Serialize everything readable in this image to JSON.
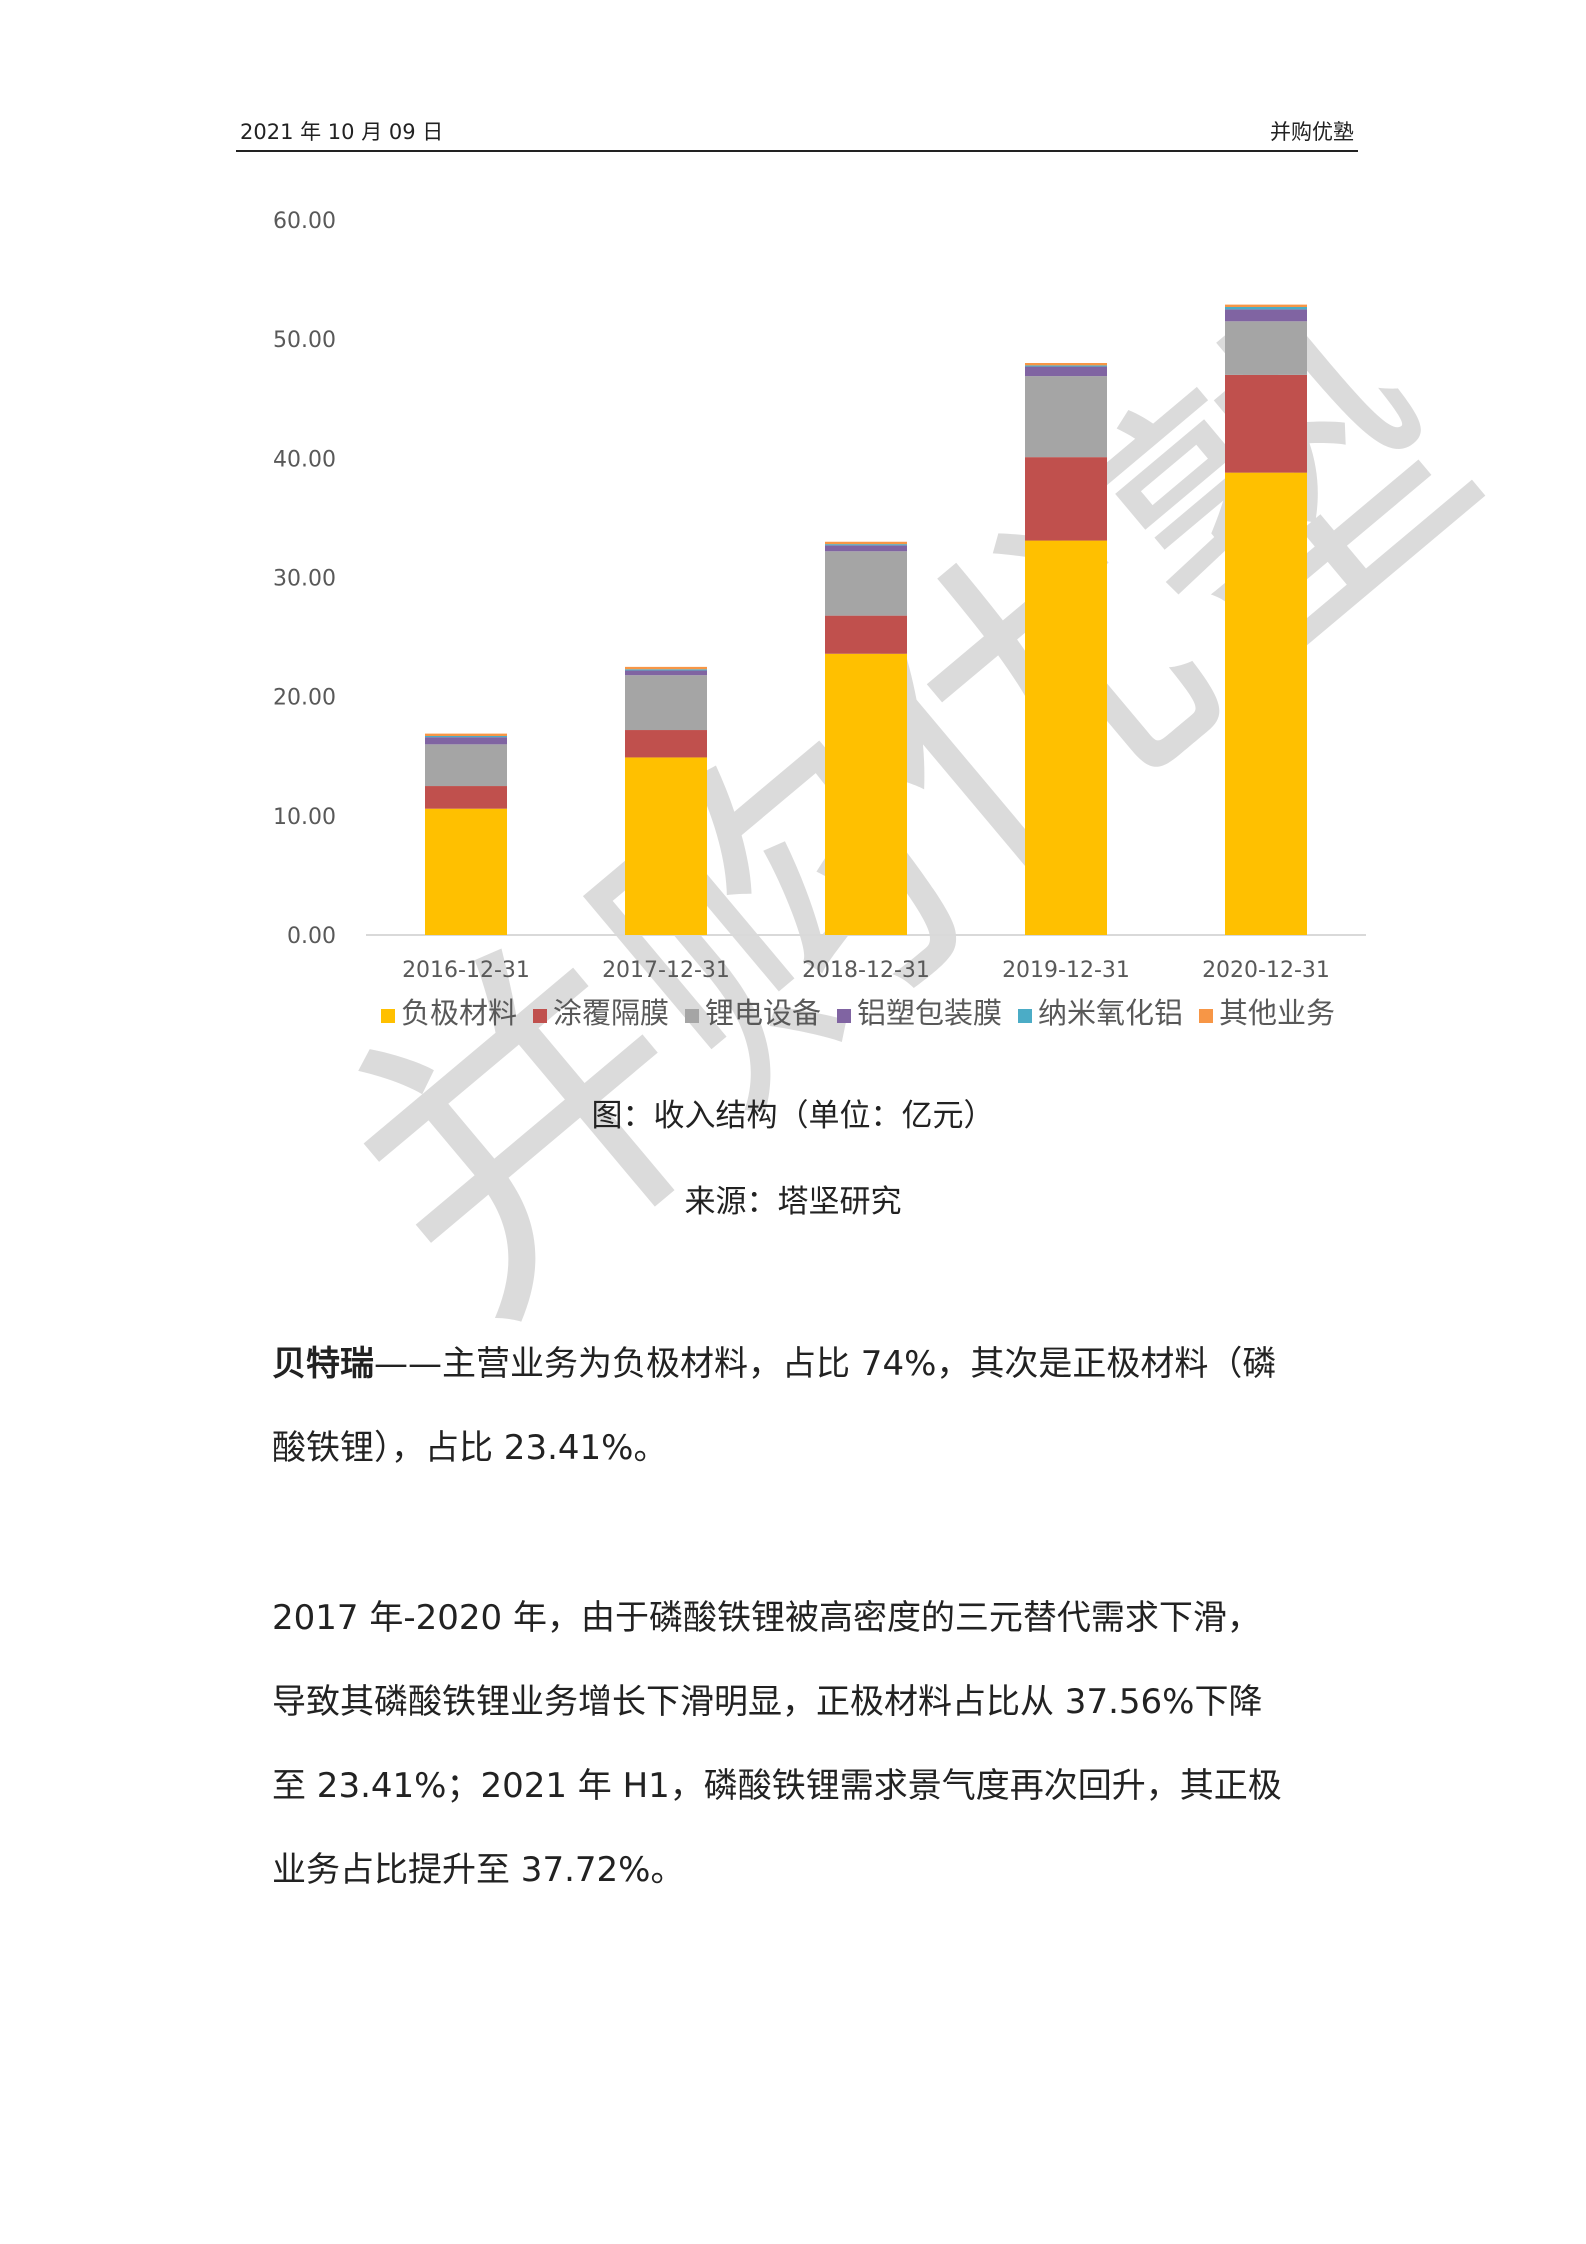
{
  "header": {
    "date": "2021 年 10 月 09 日",
    "brand": "并购优塾"
  },
  "watermark": "并购优塾",
  "chart_data": {
    "type": "bar",
    "stacked": true,
    "categories": [
      "2016-12-31",
      "2017-12-31",
      "2018-12-31",
      "2019-12-31",
      "2020-12-31"
    ],
    "series": [
      {
        "name": "负极材料",
        "color": "#FFC000",
        "values": [
          10.6,
          14.9,
          23.6,
          33.1,
          38.8
        ]
      },
      {
        "name": "涂覆隔膜",
        "color": "#C0504D",
        "values": [
          1.9,
          2.3,
          3.2,
          7.0,
          8.2
        ]
      },
      {
        "name": "锂电设备",
        "color": "#A5A5A5",
        "values": [
          3.5,
          4.6,
          5.4,
          6.8,
          4.5
        ]
      },
      {
        "name": "铝塑包装膜",
        "color": "#8064A2",
        "values": [
          0.6,
          0.4,
          0.5,
          0.8,
          1.0
        ]
      },
      {
        "name": "纳米氧化铝",
        "color": "#4BACC6",
        "values": [
          0.1,
          0.1,
          0.1,
          0.1,
          0.2
        ]
      },
      {
        "name": "其他业务",
        "color": "#F79646",
        "values": [
          0.2,
          0.2,
          0.2,
          0.2,
          0.2
        ]
      }
    ],
    "yticks": [
      "0.00",
      "10.00",
      "20.00",
      "30.00",
      "40.00",
      "50.00",
      "60.00"
    ],
    "ylim": [
      0,
      60
    ],
    "grid": false,
    "legend": "bottom"
  },
  "caption": {
    "title": "图：收入结构（单位：亿元）",
    "source": "来源：塔坚研究"
  },
  "paragraphs": {
    "p1_bold": "贝特瑞",
    "p1_line1": "——主营业务为负极材料，占比 74%，其次是正极材料（磷",
    "p1_line2": "酸铁锂），占比 23.41%。",
    "p2_line1": "2017 年-2020 年，由于磷酸铁锂被高密度的三元替代需求下滑，",
    "p2_line2": "导致其磷酸铁锂业务增长下滑明显，正极材料占比从 37.56%下降",
    "p2_line3": "至 23.41%；2021 年 H1，磷酸铁锂需求景气度再次回升，其正极",
    "p2_line4": "业务占比提升至 37.72%。"
  }
}
